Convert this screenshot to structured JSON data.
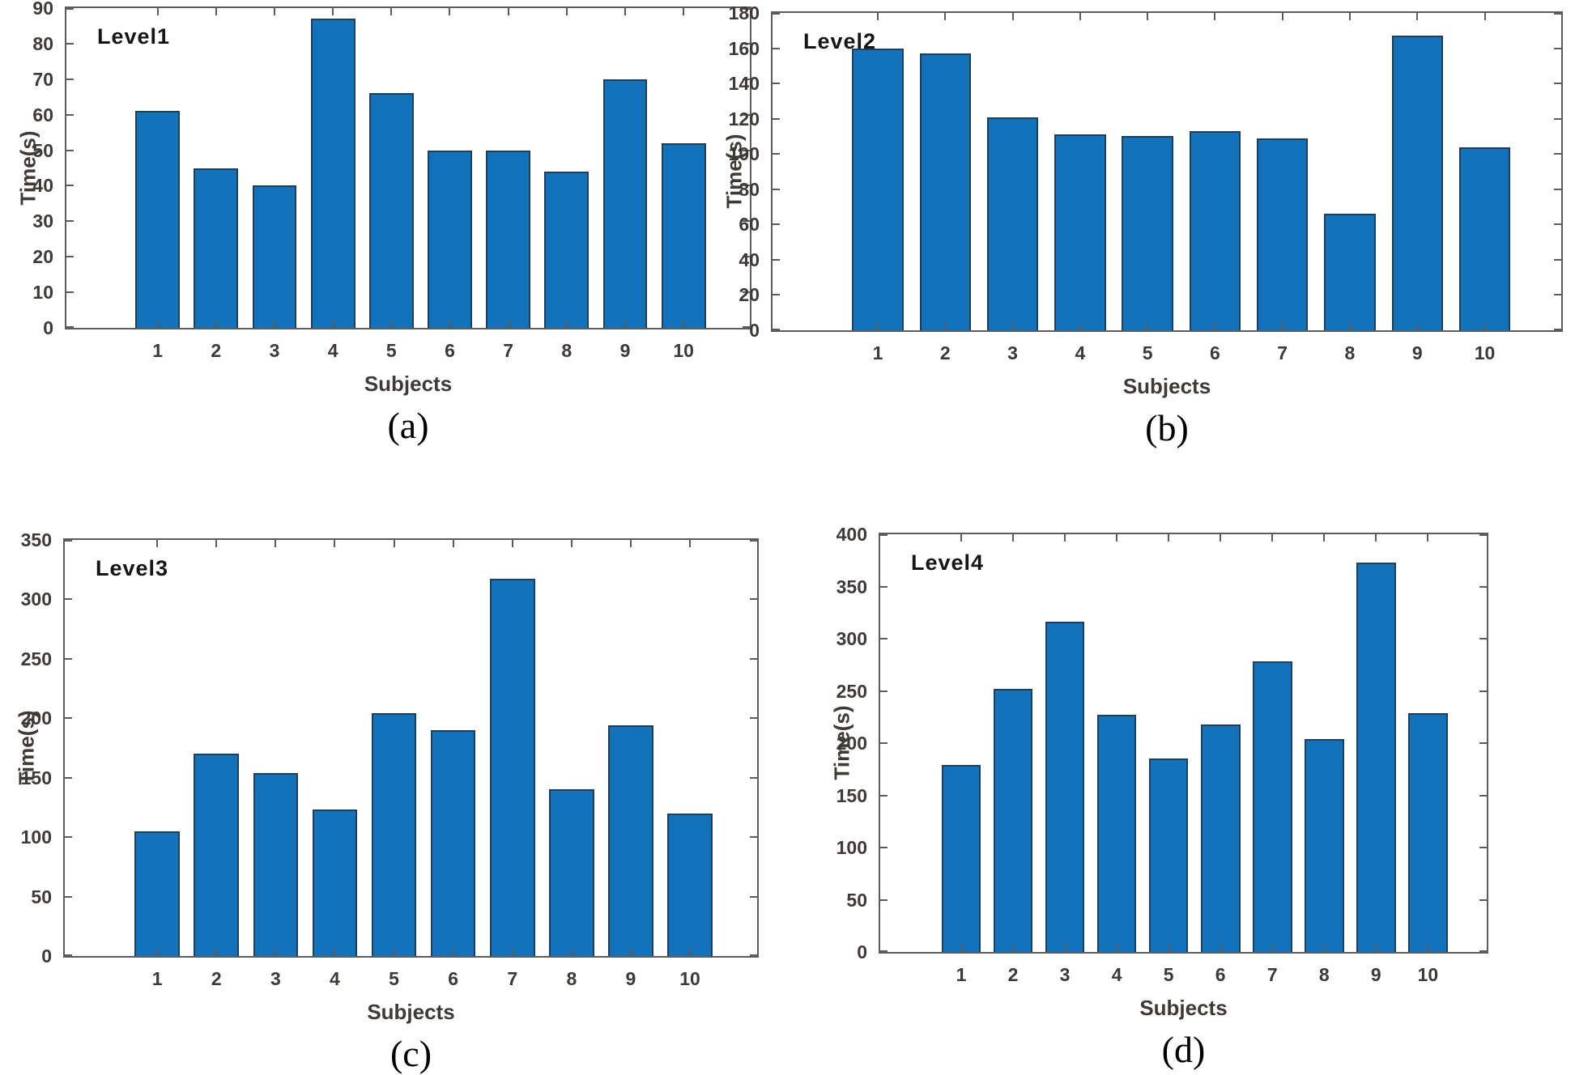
{
  "figure": {
    "background": "#ffffff",
    "colors": {
      "bar_fill": "#1272ba",
      "bar_edge": "#1d3e5f",
      "axis": "#5c5c5c",
      "tick_label": "#3e3a36",
      "title": "#151515",
      "caption": "#000000"
    }
  },
  "chart_data": [
    {
      "type": "bar",
      "panel": "a",
      "caption": "(a)",
      "title": "Level1",
      "xlabel": "Subjects",
      "ylabel": "Time(s)",
      "categories": [
        "1",
        "2",
        "3",
        "4",
        "5",
        "6",
        "7",
        "8",
        "9",
        "10"
      ],
      "values": [
        61,
        45,
        40,
        87,
        66,
        50,
        50,
        44,
        70,
        52
      ],
      "ylim": [
        0,
        90
      ],
      "ytick_step": 10,
      "ytick_labels": [
        "0",
        "10",
        "20",
        "30",
        "40",
        "50",
        "60",
        "70",
        "80",
        "90"
      ],
      "grid": false,
      "legend": "none"
    },
    {
      "type": "bar",
      "panel": "b",
      "caption": "(b)",
      "title": "Level2",
      "xlabel": "Subjects",
      "ylabel": "Time(s)",
      "categories": [
        "1",
        "2",
        "3",
        "4",
        "5",
        "6",
        "7",
        "8",
        "9",
        "10"
      ],
      "values": [
        160,
        157,
        121,
        111,
        110,
        113,
        109,
        66,
        167,
        104
      ],
      "ylim": [
        0,
        180
      ],
      "ytick_step": 20,
      "ytick_labels": [
        "0",
        "20",
        "40",
        "60",
        "80",
        "100",
        "120",
        "140",
        "160",
        "180"
      ],
      "grid": false,
      "legend": "none"
    },
    {
      "type": "bar",
      "panel": "c",
      "caption": "(c)",
      "title": "Level3",
      "xlabel": "Subjects",
      "ylabel": "Time(s)",
      "categories": [
        "1",
        "2",
        "3",
        "4",
        "5",
        "6",
        "7",
        "8",
        "9",
        "10"
      ],
      "values": [
        105,
        170,
        154,
        123,
        204,
        190,
        317,
        140,
        194,
        120
      ],
      "ylim": [
        0,
        350
      ],
      "ytick_step": 50,
      "ytick_labels": [
        "0",
        "50",
        "100",
        "150",
        "200",
        "250",
        "300",
        "350"
      ],
      "grid": false,
      "legend": "none"
    },
    {
      "type": "bar",
      "panel": "d",
      "caption": "(d)",
      "title": "Level4",
      "xlabel": "Subjects",
      "ylabel": "Time(s)",
      "categories": [
        "1",
        "2",
        "3",
        "4",
        "5",
        "6",
        "7",
        "8",
        "9",
        "10"
      ],
      "values": [
        179,
        252,
        316,
        227,
        185,
        218,
        278,
        204,
        373,
        229
      ],
      "ylim": [
        0,
        400
      ],
      "ytick_step": 50,
      "ytick_labels": [
        "0",
        "50",
        "100",
        "150",
        "200",
        "250",
        "300",
        "350",
        "400"
      ],
      "grid": false,
      "legend": "none"
    }
  ]
}
